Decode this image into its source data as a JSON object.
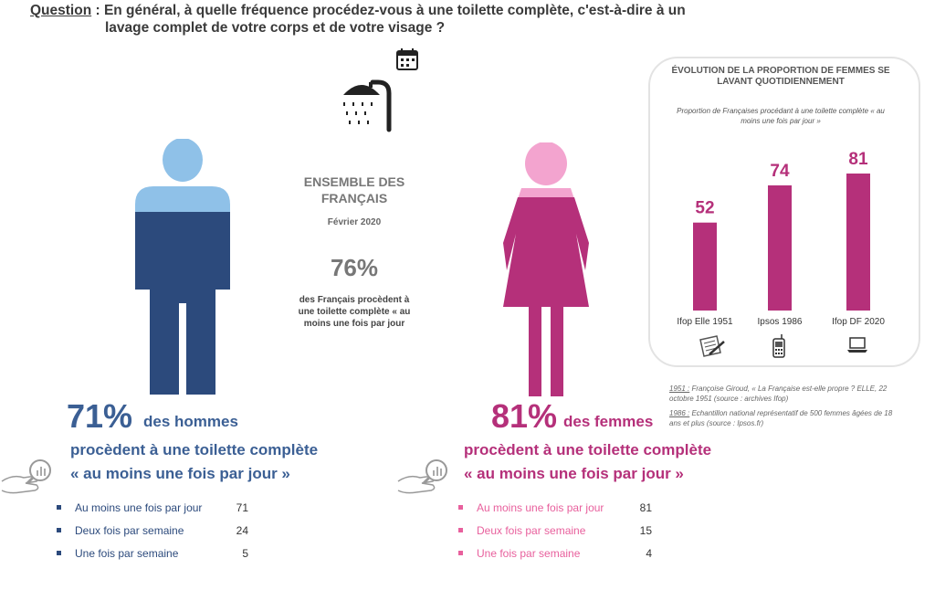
{
  "question": {
    "label": "Question",
    "line1": " : En général, à quelle fréquence procédez-vous à une toilette complète, c'est-à-dire à un",
    "line2": "lavage complet de votre corps et de votre visage ?"
  },
  "ensemble": {
    "title": "ENSEMBLE DES FRANÇAIS",
    "date": "Février 2020",
    "pct": "76%",
    "desc": "des Français procèdent à une toilette complète « au moins une fois par jour"
  },
  "men": {
    "pct": "71%",
    "label": "des hommes",
    "line2": "procèdent à une toilette complète",
    "line3": "« au moins une fois par jour »",
    "rows": [
      {
        "label": "Au moins une fois par jour",
        "value": "71"
      },
      {
        "label": "Deux fois par semaine",
        "value": "24"
      },
      {
        "label": "Une fois par semaine",
        "value": "5"
      }
    ]
  },
  "women": {
    "pct": "81%",
    "label": "des femmes",
    "line2": "procèdent à une toilette complète",
    "line3": "« au moins une fois par jour »",
    "rows": [
      {
        "label": "Au moins une fois par jour",
        "value": "81"
      },
      {
        "label": "Deux fois par semaine",
        "value": "15"
      },
      {
        "label": "Une fois par semaine",
        "value": "4"
      }
    ]
  },
  "colors": {
    "men_dark": "#2c4a7c",
    "men_light": "#8fc1e8",
    "men_text": "#3b5f94",
    "women_dark": "#b5307a",
    "women_light": "#f3a4cf",
    "bar": "#b5307a"
  },
  "icons": [
    "shower-icon",
    "calendar-icon",
    "magnifier-hand-icon",
    "paper-pen-icon",
    "phone-icon",
    "laptop-icon"
  ],
  "chart_data": {
    "type": "bar",
    "title": "ÉVOLUTION DE LA PROPORTION DE FEMMES SE LAVANT QUOTIDIENNEMENT",
    "subtitle": "Proportion de Françaises procédant à une toilette complète « au moins une fois par jour »",
    "categories": [
      "Ifop Elle 1951",
      "Ipsos 1986",
      "Ifop DF 2020"
    ],
    "values": [
      52,
      74,
      81
    ],
    "ylim": [
      0,
      100
    ]
  },
  "notes": {
    "n1_year": "1951 :",
    "n1_text": " Françoise Giroud, « La Française est-elle propre ? ELLE, 22 octobre 1951 (source : archives Ifop)",
    "n2_year": "1986 :",
    "n2_text": " Echantillon national représentatif de 500 femmes âgées de 18 ans et plus (source : Ipsos.fr)"
  }
}
